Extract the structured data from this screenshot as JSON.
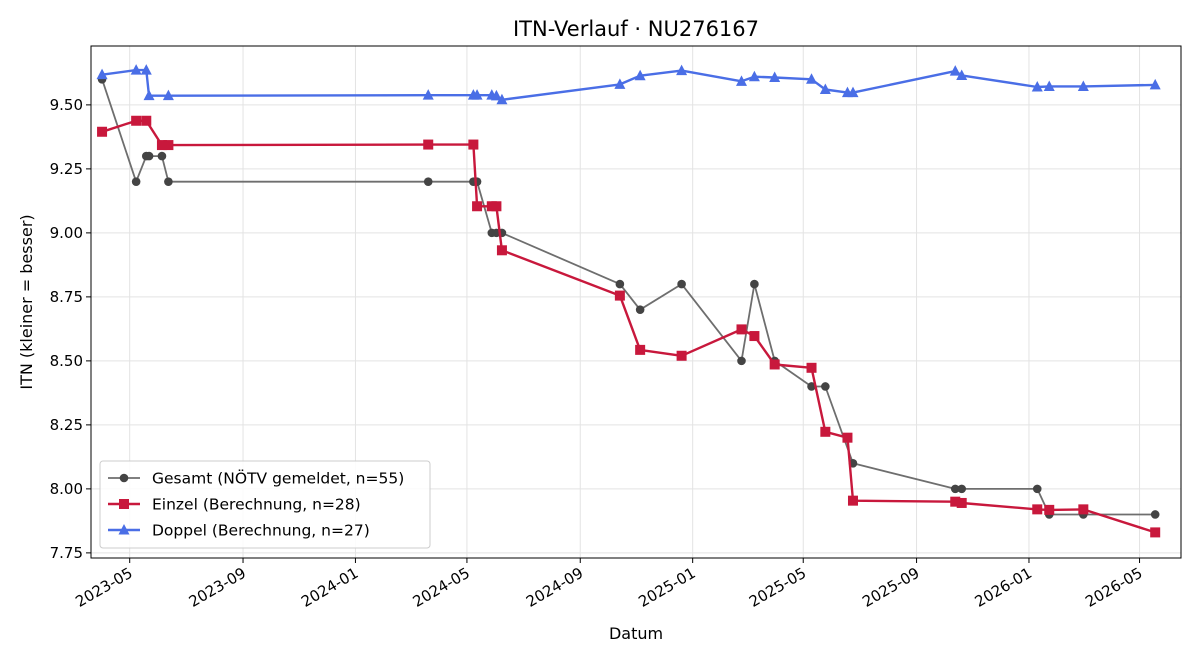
{
  "chart_data": {
    "type": "line",
    "title": "ITN-Verlauf · NU276167",
    "xlabel": "Datum",
    "ylabel": "ITN  (kleiner = besser)",
    "x_scale": "date",
    "xlim": [
      "2023-03-20",
      "2026-06-15"
    ],
    "ylim": [
      7.73,
      9.73
    ],
    "grid": true,
    "legend_position": "lower-left",
    "y_ticks": [
      "7.75",
      "8.00",
      "8.25",
      "8.50",
      "8.75",
      "9.00",
      "9.25",
      "9.50"
    ],
    "x_ticks": [
      "2023-05",
      "2023-09",
      "2024-01",
      "2024-05",
      "2024-09",
      "2025-01",
      "2025-05",
      "2025-09",
      "2026-01",
      "2026-05"
    ],
    "series": [
      {
        "name": "Gesamt (NÖTV gemeldet, n=55)",
        "color": "#555555",
        "marker": "circle",
        "points": [
          [
            "2023-04-01",
            9.6
          ],
          [
            "2023-05-08",
            9.2
          ],
          [
            "2023-05-19",
            9.3
          ],
          [
            "2023-05-22",
            9.3
          ],
          [
            "2023-06-05",
            9.3
          ],
          [
            "2023-06-12",
            9.2
          ],
          [
            "2024-03-20",
            9.2
          ],
          [
            "2024-05-08",
            9.2
          ],
          [
            "2024-05-12",
            9.2
          ],
          [
            "2024-05-28",
            9.0
          ],
          [
            "2024-06-02",
            9.0
          ],
          [
            "2024-06-08",
            9.0
          ],
          [
            "2024-10-14",
            8.8
          ],
          [
            "2024-11-05",
            8.7
          ],
          [
            "2024-12-20",
            8.8
          ],
          [
            "2025-02-23",
            8.5
          ],
          [
            "2025-03-09",
            8.8
          ],
          [
            "2025-03-31",
            8.5
          ],
          [
            "2025-05-10",
            8.4
          ],
          [
            "2025-05-25",
            8.4
          ],
          [
            "2025-06-24",
            8.1
          ],
          [
            "2025-10-13",
            8.0
          ],
          [
            "2025-10-20",
            8.0
          ],
          [
            "2026-01-10",
            8.0
          ],
          [
            "2026-01-23",
            7.9
          ],
          [
            "2026-03-01",
            7.9
          ],
          [
            "2026-05-18",
            7.9
          ]
        ]
      },
      {
        "name": "Einzel (Berechnung, n=28)",
        "color": "#c8183c",
        "marker": "square",
        "points": [
          [
            "2023-04-01",
            9.395
          ],
          [
            "2023-05-08",
            9.438
          ],
          [
            "2023-05-19",
            9.438
          ],
          [
            "2023-06-05",
            9.343
          ],
          [
            "2023-06-12",
            9.343
          ],
          [
            "2024-03-20",
            9.345
          ],
          [
            "2024-05-08",
            9.345
          ],
          [
            "2024-05-12",
            9.104
          ],
          [
            "2024-05-28",
            9.104
          ],
          [
            "2024-06-02",
            9.104
          ],
          [
            "2024-06-08",
            8.932
          ],
          [
            "2024-10-14",
            8.755
          ],
          [
            "2024-11-05",
            8.543
          ],
          [
            "2024-12-20",
            8.52
          ],
          [
            "2025-02-23",
            8.623
          ],
          [
            "2025-03-09",
            8.597
          ],
          [
            "2025-03-31",
            8.486
          ],
          [
            "2025-05-10",
            8.473
          ],
          [
            "2025-05-25",
            8.223
          ],
          [
            "2025-06-18",
            8.2
          ],
          [
            "2025-06-24",
            7.954
          ],
          [
            "2025-10-13",
            7.95
          ],
          [
            "2025-10-20",
            7.945
          ],
          [
            "2026-01-10",
            7.92
          ],
          [
            "2026-01-23",
            7.918
          ],
          [
            "2026-03-01",
            7.92
          ],
          [
            "2026-05-18",
            7.83
          ]
        ]
      },
      {
        "name": "Doppel (Berechnung, n=27)",
        "color": "#4a6ee6",
        "marker": "triangle",
        "points": [
          [
            "2023-04-01",
            9.618
          ],
          [
            "2023-05-08",
            9.636
          ],
          [
            "2023-05-19",
            9.636
          ],
          [
            "2023-05-22",
            9.536
          ],
          [
            "2023-06-12",
            9.536
          ],
          [
            "2024-03-20",
            9.538
          ],
          [
            "2024-05-08",
            9.538
          ],
          [
            "2024-05-12",
            9.538
          ],
          [
            "2024-05-28",
            9.538
          ],
          [
            "2024-06-02",
            9.535
          ],
          [
            "2024-06-08",
            9.52
          ],
          [
            "2024-10-14",
            9.58
          ],
          [
            "2024-11-05",
            9.614
          ],
          [
            "2024-12-20",
            9.634
          ],
          [
            "2025-02-23",
            9.592
          ],
          [
            "2025-03-09",
            9.61
          ],
          [
            "2025-03-31",
            9.607
          ],
          [
            "2025-05-10",
            9.6
          ],
          [
            "2025-05-25",
            9.56
          ],
          [
            "2025-06-18",
            9.548
          ],
          [
            "2025-06-24",
            9.548
          ],
          [
            "2025-10-13",
            9.632
          ],
          [
            "2025-10-20",
            9.615
          ],
          [
            "2026-01-10",
            9.57
          ],
          [
            "2026-01-23",
            9.572
          ],
          [
            "2026-03-01",
            9.572
          ],
          [
            "2026-05-18",
            9.578
          ]
        ]
      }
    ]
  }
}
